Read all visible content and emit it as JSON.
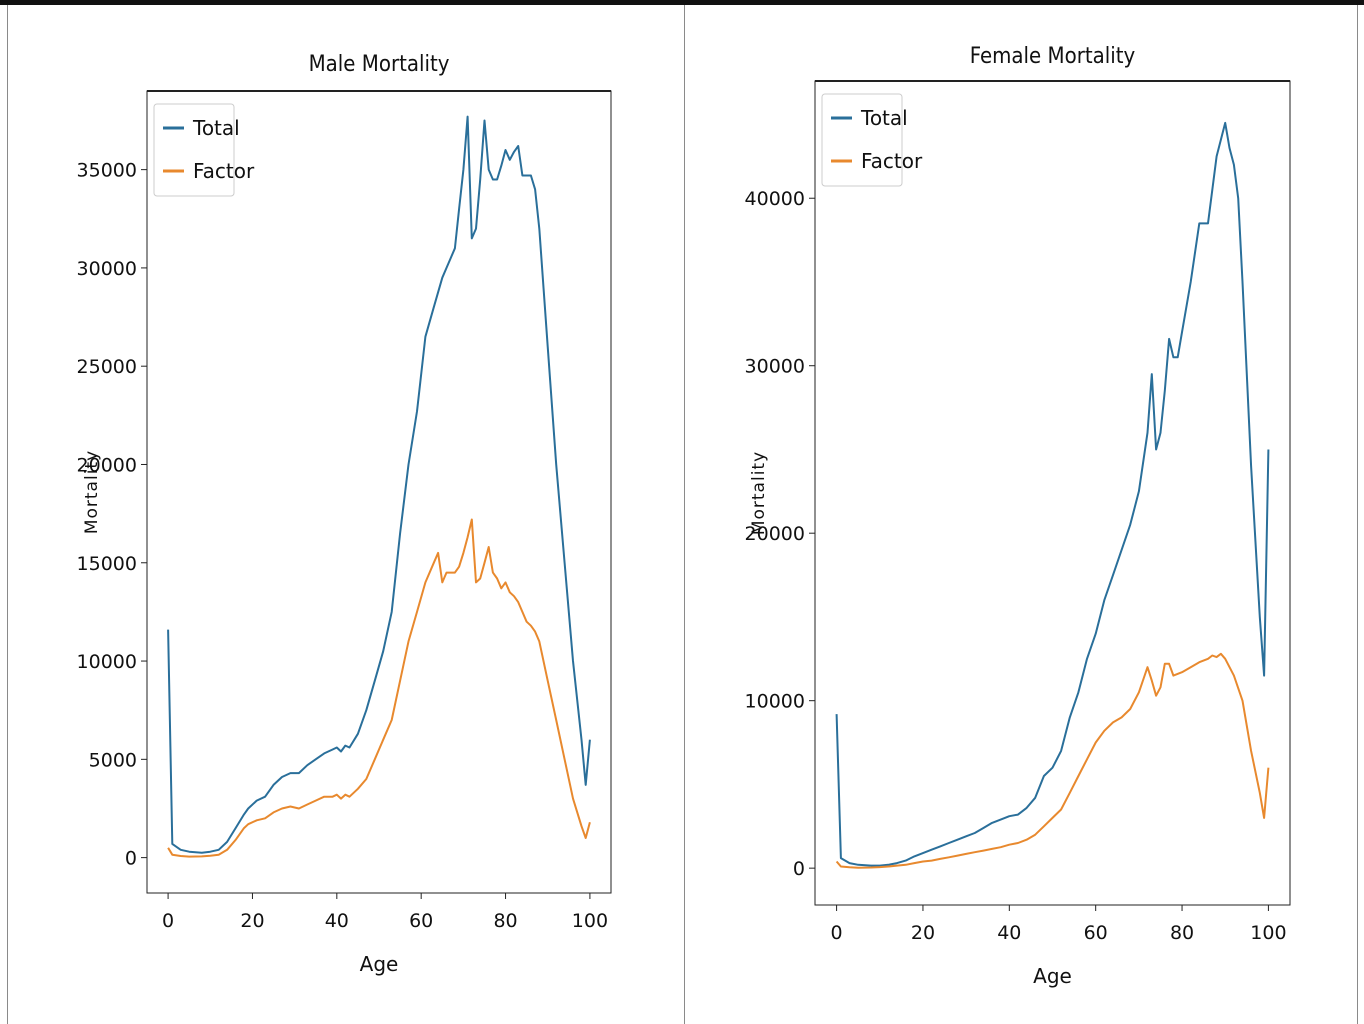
{
  "chart_data": [
    {
      "type": "line",
      "title": "Male Mortality",
      "xlabel": "Age",
      "ylabel": "Mortality",
      "xlim": [
        -5,
        105
      ],
      "ylim": [
        -1800,
        39000
      ],
      "xticks": [
        0,
        20,
        40,
        60,
        80,
        100
      ],
      "yticks": [
        0,
        5000,
        10000,
        15000,
        20000,
        25000,
        30000,
        35000
      ],
      "legend": "upper-left",
      "series": [
        {
          "name": "Total",
          "color": "#2a6f9a",
          "x": [
            0,
            1,
            3,
            5,
            8,
            10,
            12,
            14,
            16,
            18,
            19,
            21,
            23,
            25,
            27,
            29,
            31,
            33,
            35,
            37,
            39,
            40,
            41,
            42,
            43,
            45,
            47,
            49,
            51,
            53,
            55,
            57,
            59,
            61,
            63,
            65,
            66,
            67,
            68,
            69,
            70,
            71,
            72,
            73,
            74,
            75,
            76,
            77,
            78,
            79,
            80,
            81,
            82,
            83,
            84,
            85,
            86,
            87,
            88,
            89,
            90,
            92,
            94,
            96,
            98,
            99,
            100
          ],
          "values": [
            11600,
            700,
            400,
            300,
            250,
            300,
            400,
            800,
            1500,
            2200,
            2500,
            2900,
            3100,
            3700,
            4100,
            4300,
            4300,
            4700,
            5000,
            5300,
            5500,
            5600,
            5400,
            5700,
            5600,
            6300,
            7500,
            9000,
            10500,
            12500,
            16500,
            20000,
            22700,
            26500,
            28000,
            29500,
            30000,
            30500,
            31000,
            33000,
            35000,
            37700,
            31500,
            32000,
            34500,
            37500,
            35000,
            34500,
            34500,
            35200,
            36000,
            35500,
            35900,
            36200,
            34700,
            34700,
            34700,
            34000,
            32000,
            29000,
            26000,
            20000,
            15000,
            10000,
            6000,
            3700,
            6000
          ]
        },
        {
          "name": "Factor",
          "color": "#e8892e",
          "x": [
            0,
            1,
            3,
            5,
            8,
            10,
            12,
            14,
            16,
            18,
            19,
            21,
            23,
            25,
            27,
            29,
            31,
            33,
            35,
            37,
            39,
            40,
            41,
            42,
            43,
            45,
            47,
            49,
            51,
            53,
            55,
            57,
            59,
            61,
            63,
            64,
            65,
            66,
            67,
            68,
            69,
            70,
            71,
            72,
            73,
            74,
            75,
            76,
            77,
            78,
            79,
            80,
            81,
            82,
            83,
            84,
            85,
            86,
            87,
            88,
            90,
            92,
            94,
            96,
            98,
            99,
            100
          ],
          "values": [
            500,
            150,
            80,
            50,
            60,
            100,
            150,
            400,
            900,
            1500,
            1700,
            1900,
            2000,
            2300,
            2500,
            2600,
            2500,
            2700,
            2900,
            3100,
            3100,
            3200,
            3000,
            3200,
            3100,
            3500,
            4000,
            5000,
            6000,
            7000,
            9000,
            11000,
            12500,
            14000,
            15000,
            15500,
            14000,
            14500,
            14500,
            14500,
            14800,
            15500,
            16300,
            17200,
            14000,
            14200,
            15000,
            15800,
            14500,
            14200,
            13700,
            14000,
            13500,
            13300,
            13000,
            12500,
            12000,
            11800,
            11500,
            11000,
            9000,
            7000,
            5000,
            3000,
            1600,
            1000,
            1800
          ]
        }
      ]
    },
    {
      "type": "line",
      "title": "Female Mortality",
      "xlabel": "Age",
      "ylabel": "Mortality",
      "xlim": [
        -5,
        105
      ],
      "ylim": [
        -2200,
        47000
      ],
      "xticks": [
        0,
        20,
        40,
        60,
        80,
        100
      ],
      "yticks": [
        0,
        10000,
        20000,
        30000,
        40000
      ],
      "legend": "upper-left",
      "series": [
        {
          "name": "Total",
          "color": "#2a6f9a",
          "x": [
            0,
            1,
            3,
            5,
            8,
            10,
            12,
            14,
            16,
            18,
            20,
            22,
            24,
            26,
            28,
            30,
            32,
            34,
            36,
            38,
            40,
            42,
            44,
            46,
            48,
            50,
            52,
            54,
            56,
            58,
            60,
            62,
            64,
            66,
            68,
            70,
            72,
            73,
            74,
            75,
            76,
            77,
            78,
            79,
            80,
            82,
            84,
            86,
            87,
            88,
            89,
            90,
            91,
            92,
            93,
            94,
            96,
            98,
            99,
            100
          ],
          "values": [
            9200,
            600,
            300,
            200,
            150,
            150,
            200,
            300,
            450,
            700,
            900,
            1100,
            1300,
            1500,
            1700,
            1900,
            2100,
            2400,
            2700,
            2900,
            3100,
            3200,
            3600,
            4200,
            5500,
            6000,
            7000,
            9000,
            10500,
            12500,
            14000,
            16000,
            17500,
            19000,
            20500,
            22500,
            26000,
            29500,
            25000,
            26000,
            28500,
            31600,
            30500,
            30500,
            32000,
            35000,
            38500,
            38500,
            40500,
            42500,
            43500,
            44500,
            43000,
            42000,
            40000,
            35000,
            24000,
            15000,
            11500,
            25000
          ]
        },
        {
          "name": "Factor",
          "color": "#e8892e",
          "x": [
            0,
            1,
            3,
            5,
            8,
            10,
            12,
            14,
            16,
            18,
            20,
            22,
            24,
            26,
            28,
            30,
            32,
            34,
            36,
            38,
            40,
            42,
            44,
            46,
            48,
            50,
            52,
            54,
            56,
            58,
            60,
            62,
            64,
            66,
            68,
            70,
            72,
            73,
            74,
            75,
            76,
            77,
            78,
            80,
            82,
            84,
            86,
            87,
            88,
            89,
            90,
            92,
            94,
            96,
            98,
            99,
            100
          ],
          "values": [
            400,
            100,
            50,
            30,
            40,
            60,
            100,
            150,
            200,
            300,
            400,
            450,
            550,
            650,
            750,
            850,
            950,
            1050,
            1150,
            1250,
            1400,
            1500,
            1700,
            2000,
            2500,
            3000,
            3500,
            4500,
            5500,
            6500,
            7500,
            8200,
            8700,
            9000,
            9500,
            10500,
            12000,
            11200,
            10300,
            10800,
            12200,
            12200,
            11500,
            11700,
            12000,
            12300,
            12500,
            12700,
            12600,
            12800,
            12500,
            11500,
            10000,
            7000,
            4500,
            3000,
            6000
          ]
        }
      ]
    }
  ]
}
